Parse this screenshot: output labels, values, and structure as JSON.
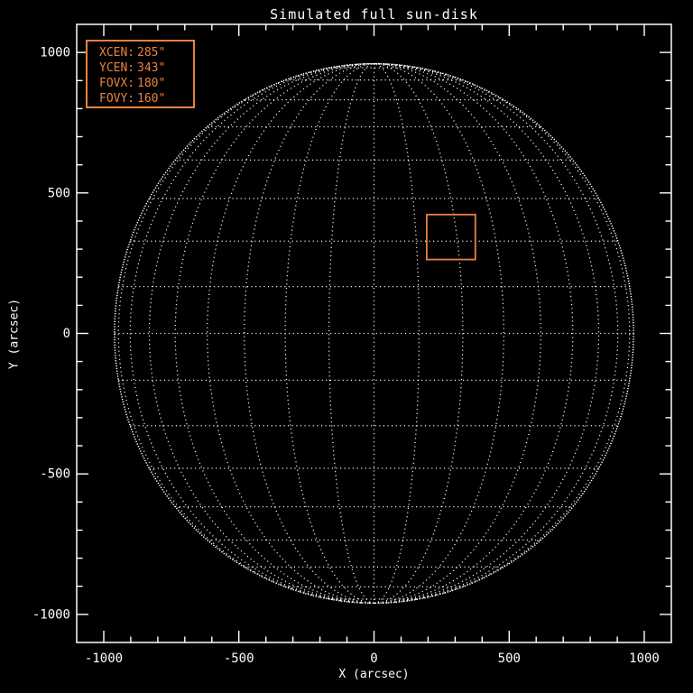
{
  "figure": {
    "colors": {
      "background": "#000000",
      "foreground": "#ffffff",
      "accent": "#e8823e"
    }
  },
  "chart_data": {
    "type": "line",
    "title": "Simulated full sun-disk",
    "xlabel": "X (arcsec)",
    "ylabel": "Y (arcsec)",
    "xlim": [
      -1100,
      1100
    ],
    "ylim": [
      -1100,
      1100
    ],
    "xticks": {
      "values": [
        -1000,
        -500,
        0,
        500,
        1000
      ],
      "labels": [
        "-1000",
        "-500",
        "0",
        "500",
        "1000"
      ],
      "minor_step": 100
    },
    "yticks": {
      "values": [
        -1000,
        -500,
        0,
        500,
        1000
      ],
      "labels": [
        "-1000",
        "-500",
        "0",
        "500",
        "1000"
      ],
      "minor_step": 100
    },
    "sun": {
      "radius_arcsec": 960,
      "grid_step_deg": 10,
      "grid_extent_deg": 80,
      "grid_style": "dotted"
    },
    "fov": {
      "xcen_arcsec": 285,
      "ycen_arcsec": 343,
      "fovx_arcsec": 180,
      "fovy_arcsec": 160
    },
    "legend": [
      {
        "label": "XCEN:",
        "value": "285\""
      },
      {
        "label": "YCEN:",
        "value": "343\""
      },
      {
        "label": "FOVX:",
        "value": "180\""
      },
      {
        "label": "FOVY:",
        "value": "160\""
      }
    ]
  }
}
